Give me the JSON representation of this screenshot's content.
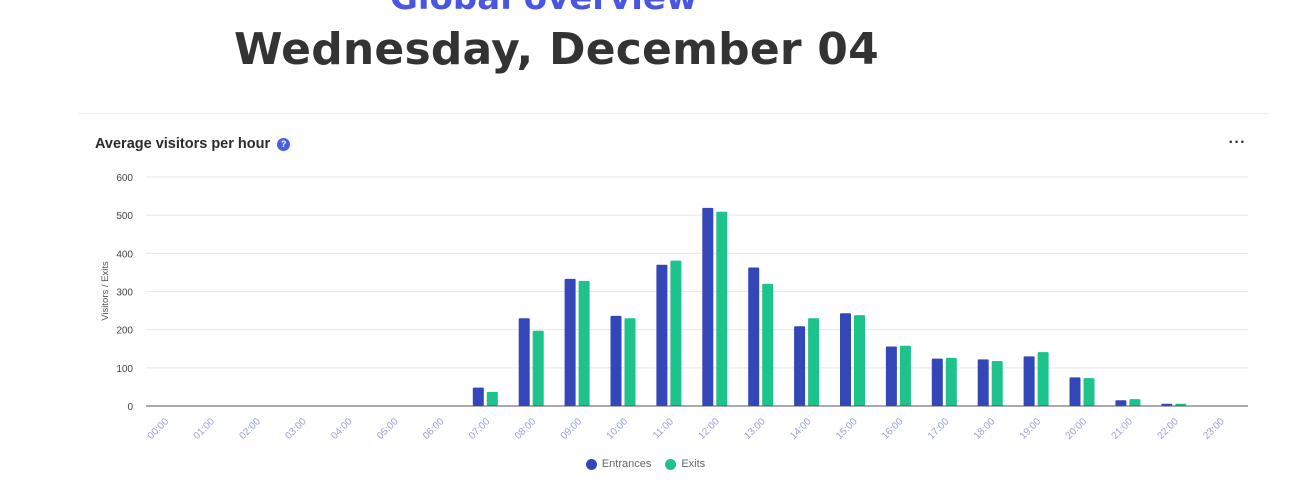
{
  "page": {
    "section_title": "Global overview",
    "date_heading": "Wednesday, December 04"
  },
  "card": {
    "title": "Average visitors per hour",
    "help_glyph": "?",
    "menu_glyph": "···"
  },
  "colors": {
    "entrances": "#3347b8",
    "exits": "#1ec28b",
    "axis_label": "#9aa0d8",
    "grid": "#e8e8e8",
    "title_accent": "#4a55e0"
  },
  "chart_data": {
    "type": "bar",
    "title": "Average visitors per hour",
    "xlabel": "",
    "ylabel": "Visitors / Exits",
    "ylim": [
      0,
      600
    ],
    "yticks": [
      0,
      100,
      200,
      300,
      400,
      500,
      600
    ],
    "grid": true,
    "legend": "bottom-center",
    "categories": [
      "00:00",
      "01:00",
      "02:00",
      "03:00",
      "04:00",
      "05:00",
      "06:00",
      "07:00",
      "08:00",
      "09:00",
      "10:00",
      "11:00",
      "12:00",
      "13:00",
      "14:00",
      "15:00",
      "16:00",
      "17:00",
      "18:00",
      "19:00",
      "20:00",
      "21:00",
      "22:00",
      "23:00"
    ],
    "series": [
      {
        "name": "Entrances",
        "values": [
          0,
          0,
          0,
          0,
          0,
          0,
          0,
          48,
          230,
          333,
          236,
          370,
          519,
          363,
          209,
          243,
          156,
          124,
          122,
          130,
          75,
          15,
          6,
          0
        ]
      },
      {
        "name": "Exits",
        "values": [
          0,
          0,
          0,
          0,
          0,
          0,
          0,
          37,
          197,
          328,
          230,
          381,
          509,
          320,
          230,
          238,
          158,
          126,
          118,
          141,
          73,
          18,
          6,
          0
        ]
      }
    ]
  }
}
